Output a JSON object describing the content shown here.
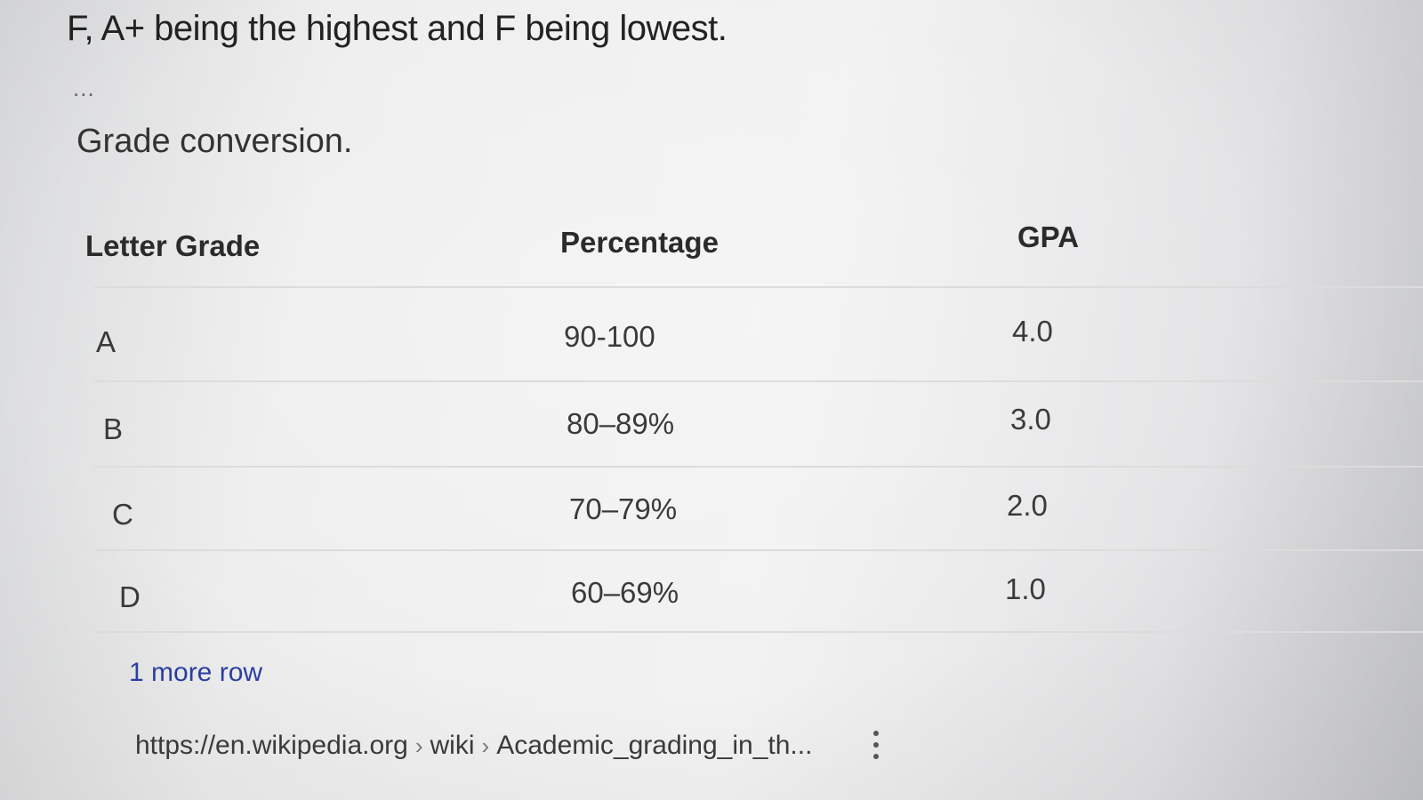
{
  "snippet": {
    "text": "F, A+ being the highest and F being lowest.",
    "ellipsis": "..."
  },
  "table": {
    "title": "Grade conversion.",
    "headers": [
      "Letter Grade",
      "Percentage",
      "GPA"
    ],
    "rows": [
      [
        "A",
        "90-100",
        "4.0"
      ],
      [
        "B",
        "80–89%",
        "3.0"
      ],
      [
        "C",
        "70–79%",
        "2.0"
      ],
      [
        "D",
        "60–69%",
        "1.0"
      ]
    ],
    "more_rows_label": "1 more row"
  },
  "source": {
    "domain": "https://en.wikipedia.org",
    "crumbs": [
      "wiki",
      "Academic_grading_in_th..."
    ],
    "separator": "›",
    "menu_icon": "more-vertical-icon"
  },
  "colors": {
    "link": "#2a3fa0",
    "text": "#2a2a2a"
  }
}
